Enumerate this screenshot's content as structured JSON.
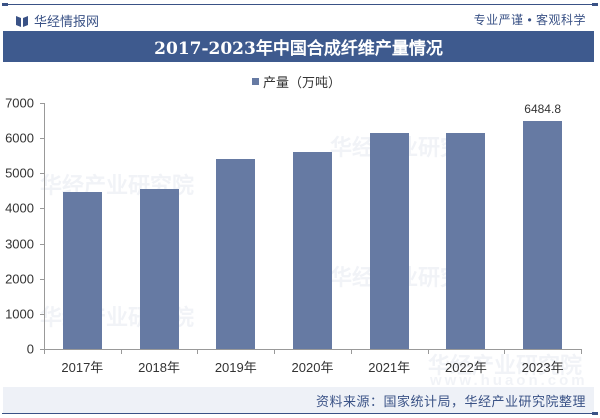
{
  "header": {
    "brand": "华经情报网",
    "slogan": "专业严谨 • 客观科学",
    "title": "2017-2023年中国合成纤维产量情况"
  },
  "legend": {
    "label": "产量（万吨）",
    "color": "#667aa3"
  },
  "footer": {
    "source": "资料来源：国家统计局，华经产业研究院整理"
  },
  "watermark": {
    "text": "华经产业研究院",
    "url_text": "www.huaon.com"
  },
  "axis": {
    "y_ticks": [
      "0",
      "1000",
      "2000",
      "3000",
      "4000",
      "5000",
      "6000",
      "7000"
    ]
  },
  "chart_data": {
    "type": "bar",
    "title": "2017-2023年中国合成纤维产量情况",
    "xlabel": "",
    "ylabel": "",
    "categories": [
      "2017年",
      "2018年",
      "2019年",
      "2020年",
      "2021年",
      "2022年",
      "2023年"
    ],
    "series": [
      {
        "name": "产量（万吨）",
        "values": [
          4470,
          4555,
          5405,
          5605,
          6150,
          6150,
          6484.8
        ],
        "color": "#667aa3"
      }
    ],
    "data_labels": [
      null,
      null,
      null,
      null,
      null,
      null,
      "6484.8"
    ],
    "ylim": [
      0,
      7000
    ],
    "y_ticks": [
      0,
      1000,
      2000,
      3000,
      4000,
      5000,
      6000,
      7000
    ],
    "grid": false,
    "legend_position": "top"
  }
}
